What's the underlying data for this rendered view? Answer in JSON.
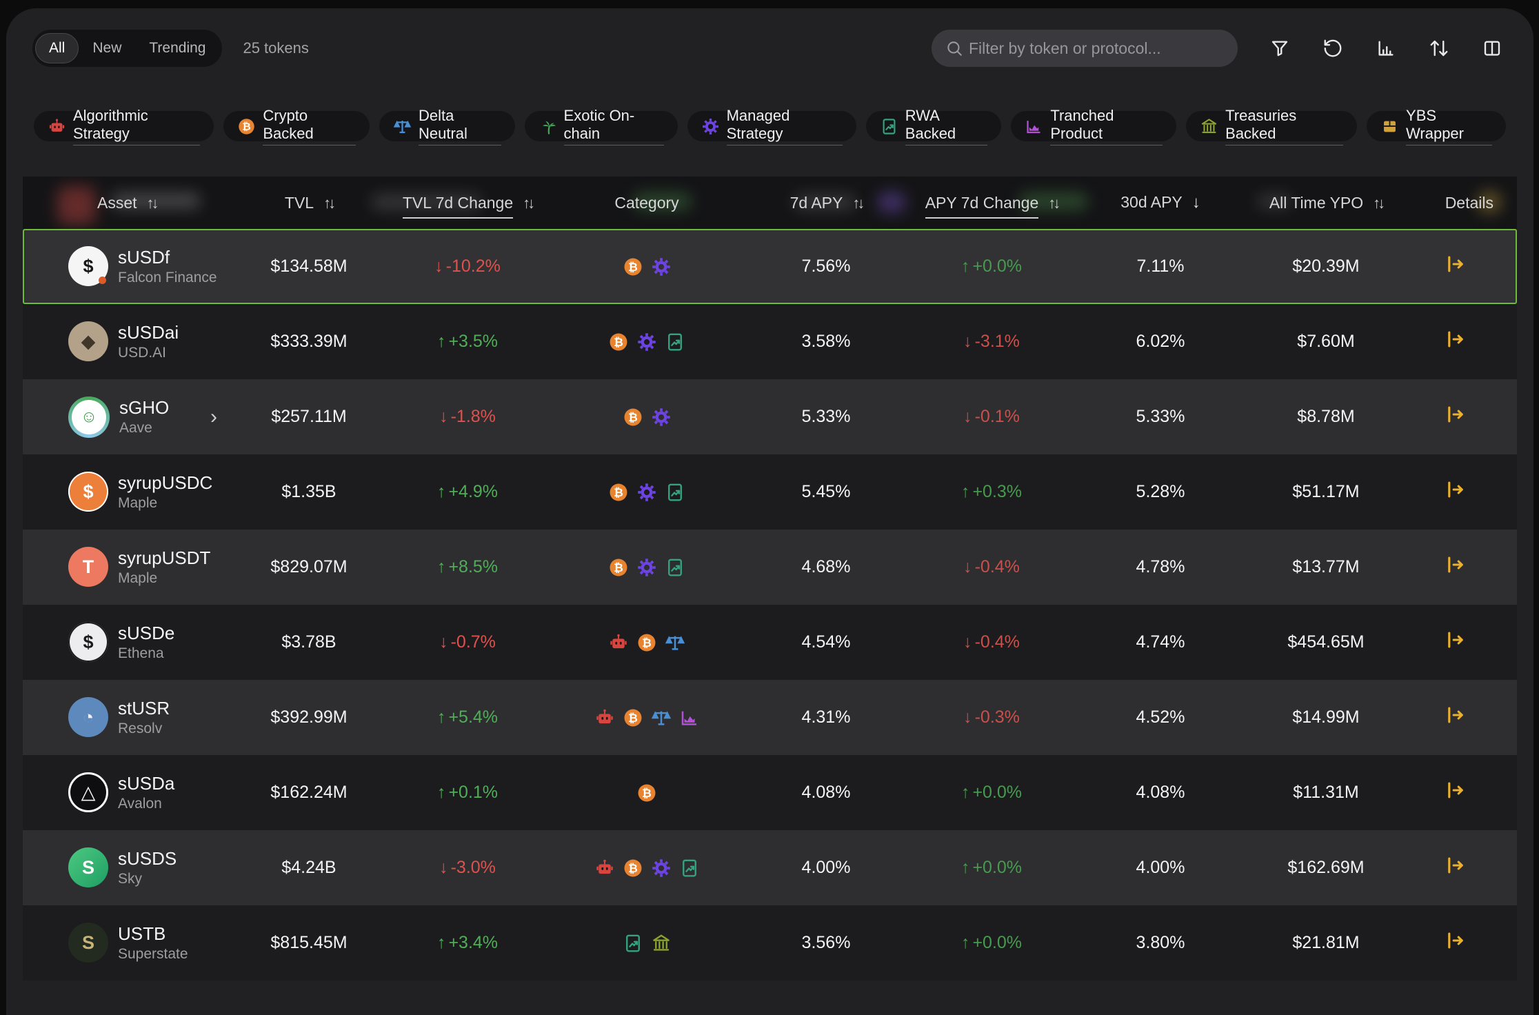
{
  "toolbar": {
    "tabs": [
      {
        "label": "All",
        "active": true
      },
      {
        "label": "New",
        "active": false
      },
      {
        "label": "Trending",
        "active": false
      }
    ],
    "token_count": "25 tokens",
    "search_placeholder": "Filter by token or protocol...",
    "action_icons": [
      "filter",
      "rotate-ccw",
      "bar-chart",
      "arrow-up-down",
      "columns"
    ]
  },
  "colors": {
    "highlight_border": "#6dbb3a",
    "details_arrow": "#eab131",
    "positive": "#4fae57",
    "negative": "#df514d",
    "icon_default": "#e8e8ea"
  },
  "categories": {
    "algorithmic": {
      "label": "Algorithmic Strategy",
      "color": "#d8453f",
      "icon": "robot"
    },
    "crypto": {
      "label": "Crypto Backed",
      "color": "#e8832f",
      "icon": "bitcoin"
    },
    "delta": {
      "label": "Delta Neutral",
      "color": "#4a8fd4",
      "icon": "scales"
    },
    "exotic": {
      "label": "Exotic On-chain",
      "color": "#43a556",
      "icon": "palm"
    },
    "managed": {
      "label": "Managed Strategy",
      "color": "#6d44e3",
      "icon": "gear"
    },
    "rwa": {
      "label": "RWA Backed",
      "color": "#35a380",
      "icon": "doc-chart"
    },
    "tranched": {
      "label": "Tranched Product",
      "color": "#b44fd8",
      "icon": "area-chart"
    },
    "treasuries": {
      "label": "Treasuries Backed",
      "color": "#8ba32f",
      "icon": "bank"
    },
    "ybs": {
      "label": "YBS Wrapper",
      "color": "#cfa23d",
      "icon": "box"
    }
  },
  "chip_order": [
    "algorithmic",
    "crypto",
    "delta",
    "exotic",
    "managed",
    "rwa",
    "tranched",
    "treasuries",
    "ybs"
  ],
  "table": {
    "columns": [
      {
        "key": "asset",
        "label": "Asset",
        "sort": "both",
        "align": "left"
      },
      {
        "key": "tvl",
        "label": "TVL",
        "sort": "both"
      },
      {
        "key": "tvl_change",
        "label": "TVL 7d Change",
        "sort": "both",
        "underline": true
      },
      {
        "key": "category",
        "label": "Category"
      },
      {
        "key": "apy_7d",
        "label": "7d APY",
        "sort": "both"
      },
      {
        "key": "apy_change",
        "label": "APY 7d Change",
        "sort": "both",
        "underline": true
      },
      {
        "key": "apy_30d",
        "label": "30d APY",
        "sort": "down"
      },
      {
        "key": "all_time",
        "label": "All Time YPO",
        "sort": "both"
      },
      {
        "key": "details",
        "label": "Details",
        "align": "right"
      }
    ],
    "rows": [
      {
        "symbol": "sUSDf",
        "protocol": "Falcon Finance",
        "tvl": "$134.58M",
        "tvl_change": "-10.2%",
        "tvl_dir": "down",
        "categories": [
          "crypto",
          "managed"
        ],
        "apy_7d": "7.56%",
        "apy_change": "+0.0%",
        "apy_dir": "up",
        "apy_30d": "7.11%",
        "all_time": "$20.39M",
        "highlighted": true,
        "icon": {
          "bg": "#f5f5f5",
          "fg": "#17171a",
          "glyph": "$",
          "dot": "#e05a26"
        }
      },
      {
        "symbol": "sUSDai",
        "protocol": "USD.AI",
        "tvl": "$333.39M",
        "tvl_change": "+3.5%",
        "tvl_dir": "up",
        "categories": [
          "crypto",
          "managed",
          "rwa"
        ],
        "apy_7d": "3.58%",
        "apy_change": "-3.1%",
        "apy_dir": "down",
        "apy_30d": "6.02%",
        "all_time": "$7.60M",
        "icon": {
          "bg": "#b3a18a",
          "fg": "#40362a",
          "glyph": "◆"
        }
      },
      {
        "symbol": "sGHO",
        "protocol": "Aave",
        "tvl": "$257.11M",
        "tvl_change": "-1.8%",
        "tvl_dir": "down",
        "categories": [
          "crypto",
          "managed"
        ],
        "apy_7d": "5.33%",
        "apy_change": "-0.1%",
        "apy_dir": "down",
        "apy_30d": "5.33%",
        "all_time": "$8.78M",
        "expandable": true,
        "icon": {
          "bg": "#ffffff",
          "fg": "#3fa14c",
          "glyph": "☺",
          "ringColors": [
            "#45a955",
            "#8ec9ef",
            "#45a955"
          ]
        }
      },
      {
        "symbol": "syrupUSDC",
        "protocol": "Maple",
        "tvl": "$1.35B",
        "tvl_change": "+4.9%",
        "tvl_dir": "up",
        "categories": [
          "crypto",
          "managed",
          "rwa"
        ],
        "apy_7d": "5.45%",
        "apy_change": "+0.3%",
        "apy_dir": "up",
        "apy_30d": "5.28%",
        "all_time": "$51.17M",
        "icon": {
          "bg": "#ec7f3a",
          "fg": "#ffffff",
          "glyph": "$",
          "innerRing": "#ffffff"
        }
      },
      {
        "symbol": "syrupUSDT",
        "protocol": "Maple",
        "tvl": "$829.07M",
        "tvl_change": "+8.5%",
        "tvl_dir": "up",
        "categories": [
          "crypto",
          "managed",
          "rwa"
        ],
        "apy_7d": "4.68%",
        "apy_change": "-0.4%",
        "apy_dir": "down",
        "apy_30d": "4.78%",
        "all_time": "$13.77M",
        "icon": {
          "bg": "#ed7960",
          "fg": "#ffffff",
          "glyph": "T"
        }
      },
      {
        "symbol": "sUSDe",
        "protocol": "Ethena",
        "tvl": "$3.78B",
        "tvl_change": "-0.7%",
        "tvl_dir": "down",
        "categories": [
          "algorithmic",
          "crypto",
          "delta"
        ],
        "apy_7d": "4.54%",
        "apy_change": "-0.4%",
        "apy_dir": "down",
        "apy_30d": "4.74%",
        "all_time": "$454.65M",
        "icon": {
          "bg": "#ededef",
          "fg": "#1b1b1f",
          "glyph": "$",
          "innerRing": "#1b1b1f"
        }
      },
      {
        "symbol": "stUSR",
        "protocol": "Resolv",
        "tvl": "$392.99M",
        "tvl_change": "+5.4%",
        "tvl_dir": "up",
        "categories": [
          "algorithmic",
          "crypto",
          "delta",
          "tranched"
        ],
        "apy_7d": "4.31%",
        "apy_change": "-0.3%",
        "apy_dir": "down",
        "apy_30d": "4.52%",
        "all_time": "$14.99M",
        "icon": {
          "bg": "#5d89bd",
          "fg": "#eaf1f8",
          "glyph": "◔"
        }
      },
      {
        "symbol": "sUSDa",
        "protocol": "Avalon",
        "tvl": "$162.24M",
        "tvl_change": "+0.1%",
        "tvl_dir": "up",
        "categories": [
          "crypto"
        ],
        "apy_7d": "4.08%",
        "apy_change": "+0.0%",
        "apy_dir": "up",
        "apy_30d": "4.08%",
        "all_time": "$11.31M",
        "icon": {
          "bg": "#0e0e10",
          "fg": "#ffffff",
          "glyph": "△",
          "outerRing": "#ffffff"
        }
      },
      {
        "symbol": "sUSDS",
        "protocol": "Sky",
        "tvl": "$4.24B",
        "tvl_change": "-3.0%",
        "tvl_dir": "down",
        "categories": [
          "algorithmic",
          "crypto",
          "managed",
          "rwa"
        ],
        "apy_7d": "4.00%",
        "apy_change": "+0.0%",
        "apy_dir": "up",
        "apy_30d": "4.00%",
        "all_time": "$162.69M",
        "icon": {
          "bg": "linear",
          "bgColors": [
            "#4cc981",
            "#1f9e63"
          ],
          "fg": "#ffffff",
          "glyph": "S"
        }
      },
      {
        "symbol": "USTB",
        "protocol": "Superstate",
        "tvl": "$815.45M",
        "tvl_change": "+3.4%",
        "tvl_dir": "up",
        "categories": [
          "rwa",
          "treasuries"
        ],
        "apy_7d": "3.56%",
        "apy_change": "+0.0%",
        "apy_dir": "up",
        "apy_30d": "3.80%",
        "all_time": "$21.81M",
        "icon": {
          "bg": "#232a1f",
          "fg": "#c9b478",
          "glyph": "S"
        }
      }
    ]
  }
}
